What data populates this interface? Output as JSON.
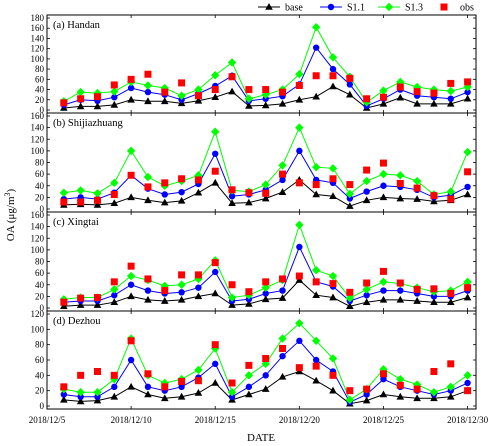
{
  "chart_data": {
    "type": "line",
    "ylabel": "OA (μg/m³)",
    "ylabel_parts": {
      "prefix": "OA (μg/m",
      "sup": "3",
      "suffix": ")"
    },
    "xlabel": "DATE",
    "x_tick_labels": [
      "2018/12/5",
      "2018/12/10",
      "2018/12/15",
      "2018/12/20",
      "2018/12/25",
      "2018/12/30"
    ],
    "x_tick_days": [
      5,
      10,
      15,
      20,
      25,
      30
    ],
    "x_days": [
      6,
      7,
      8,
      9,
      10,
      11,
      12,
      13,
      14,
      15,
      16,
      17,
      18,
      19,
      20,
      21,
      22,
      23,
      24,
      25,
      26,
      27,
      28,
      29,
      30
    ],
    "xlim_days": [
      5,
      30.5
    ],
    "legend": [
      {
        "name": "base",
        "color": "#000000",
        "marker": "triangle"
      },
      {
        "name": "S1.1",
        "color": "#0000ff",
        "marker": "circle"
      },
      {
        "name": "S1.3",
        "color": "#00ff00",
        "marker": "diamond"
      },
      {
        "name": "obs",
        "color": "#ff0000",
        "marker": "square"
      }
    ],
    "legend_position": "top-right",
    "panels": [
      {
        "title": "(a) Handan",
        "ylim": [
          0,
          180
        ],
        "yticks": [
          0,
          20,
          40,
          60,
          80,
          100,
          120,
          140,
          160,
          180
        ],
        "series": [
          {
            "name": "base",
            "values": [
              4,
              7,
              7,
              10,
              20,
              17,
              17,
              13,
              18,
              25,
              36,
              8,
              9,
              12,
              20,
              26,
              46,
              30,
              4,
              12,
              24,
              12,
              12,
              12,
              22
            ]
          },
          {
            "name": "S1.1",
            "values": [
              10,
              20,
              18,
              25,
              43,
              35,
              30,
              20,
              32,
              47,
              67,
              18,
              22,
              27,
              50,
              122,
              80,
              50,
              8,
              22,
              40,
              28,
              25,
              22,
              35
            ]
          },
          {
            "name": "S1.3",
            "values": [
              17,
              35,
              33,
              36,
              55,
              48,
              43,
              28,
              40,
              68,
              93,
              22,
              30,
              40,
              70,
              162,
              103,
              65,
              15,
              38,
              55,
              45,
              40,
              37,
              45
            ]
          },
          {
            "name": "obs",
            "values": [
              14,
              22,
              26,
              49,
              60,
              70,
              35,
              53,
              28,
              40,
              65,
              40,
              40,
              35,
              48,
              67,
              67,
              62,
              22,
              25,
              45,
              36,
              33,
              52,
              55
            ]
          }
        ]
      },
      {
        "title": "(b) Shijiazhuang",
        "ylim": [
          0,
          160
        ],
        "yticks": [
          0,
          20,
          40,
          60,
          80,
          100,
          120,
          140,
          160
        ],
        "series": [
          {
            "name": "base",
            "values": [
              7,
              8,
              7,
              10,
              20,
              15,
              11,
              14,
              28,
              45,
              10,
              11,
              18,
              29,
              50,
              25,
              22,
              5,
              15,
              20,
              18,
              17,
              13,
              15,
              25
            ]
          },
          {
            "name": "S1.1",
            "values": [
              17,
              20,
              17,
              28,
              58,
              35,
              25,
              29,
              43,
              95,
              22,
              25,
              33,
              50,
              100,
              50,
              45,
              18,
              30,
              40,
              38,
              33,
              20,
              24,
              38
            ]
          },
          {
            "name": "S1.3",
            "values": [
              28,
              32,
              27,
              45,
              100,
              55,
              40,
              48,
              58,
              133,
              32,
              30,
              42,
              75,
              140,
              72,
              70,
              26,
              48,
              60,
              58,
              48,
              25,
              30,
              98
            ]
          },
          {
            "name": "obs",
            "values": [
              12,
              12,
              15,
              25,
              58,
              38,
              45,
              52,
              50,
              65,
              33,
              28,
              27,
              60,
              45,
              42,
              52,
              42,
              67,
              79,
              44,
              36,
              23,
              17,
              64
            ]
          }
        ]
      },
      {
        "title": "(c) Xingtai",
        "ylim": [
          0,
          160
        ],
        "yticks": [
          0,
          20,
          40,
          60,
          80,
          100,
          120,
          140,
          160
        ],
        "series": [
          {
            "name": "base",
            "values": [
              3,
              5,
              5,
              10,
              20,
              14,
              12,
              14,
              20,
              25,
              5,
              7,
              15,
              17,
              48,
              22,
              18,
              3,
              10,
              14,
              14,
              12,
              10,
              10,
              18
            ]
          },
          {
            "name": "S1.1",
            "values": [
              10,
              12,
              12,
              22,
              40,
              30,
              25,
              27,
              35,
              62,
              12,
              15,
              25,
              30,
              105,
              45,
              37,
              12,
              22,
              30,
              30,
              25,
              20,
              20,
              30
            ]
          },
          {
            "name": "S1.3",
            "values": [
              15,
              18,
              18,
              32,
              55,
              48,
              38,
              40,
              50,
              82,
              18,
              22,
              35,
              48,
              143,
              65,
              55,
              17,
              32,
              45,
              42,
              35,
              28,
              30,
              45
            ]
          },
          {
            "name": "obs",
            "values": [
              10,
              17,
              18,
              45,
              72,
              50,
              30,
              57,
              57,
              78,
              40,
              28,
              45,
              50,
              55,
              45,
              42,
              27,
              43,
              63,
              43,
              32,
              33,
              25,
              35
            ]
          }
        ]
      },
      {
        "title": "(d) Dezhou",
        "ylim": [
          0,
          120
        ],
        "yticks": [
          0,
          20,
          40,
          60,
          80,
          100,
          120
        ],
        "series": [
          {
            "name": "base",
            "values": [
              8,
              6,
              7,
              12,
              25,
              15,
              10,
              12,
              17,
              30,
              8,
              15,
              22,
              38,
              45,
              33,
              20,
              3,
              7,
              15,
              12,
              10,
              10,
              12,
              20
            ]
          },
          {
            "name": "S1.1",
            "values": [
              15,
              12,
              12,
              25,
              60,
              25,
              20,
              25,
              37,
              55,
              12,
              25,
              40,
              65,
              85,
              60,
              45,
              5,
              15,
              35,
              25,
              20,
              15,
              20,
              30
            ]
          },
          {
            "name": "S1.3",
            "values": [
              22,
              18,
              18,
              35,
              88,
              40,
              30,
              35,
              47,
              75,
              18,
              40,
              55,
              88,
              108,
              85,
              62,
              8,
              22,
              48,
              35,
              28,
              18,
              25,
              40
            ]
          },
          {
            "name": "obs",
            "values": [
              25,
              40,
              45,
              40,
              85,
              42,
              25,
              32,
              33,
              80,
              30,
              53,
              62,
              75,
              50,
              52,
              40,
              20,
              22,
              42,
              27,
              22,
              45,
              55,
              20
            ]
          }
        ]
      }
    ]
  }
}
